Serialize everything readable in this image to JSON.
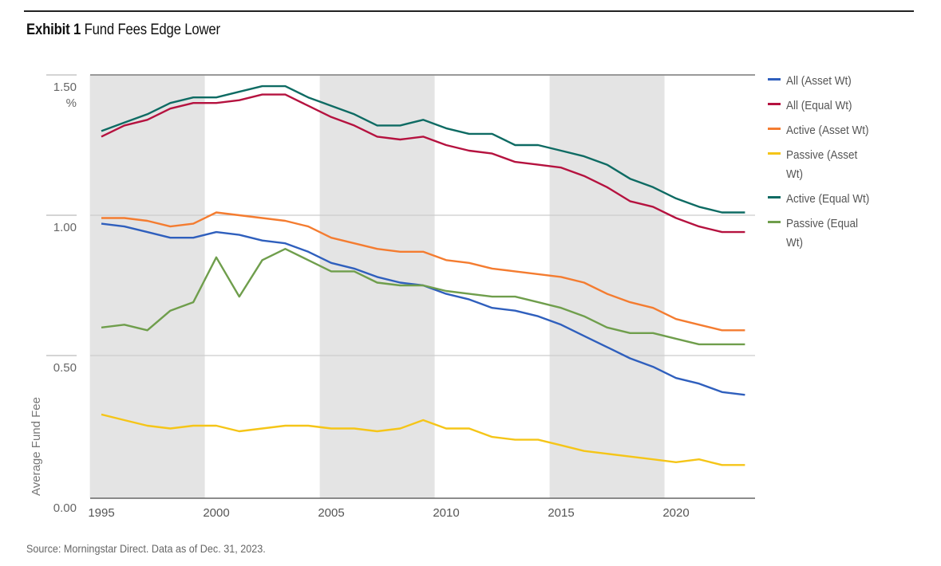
{
  "header": {
    "exhibit": "Exhibit 1",
    "title": "Fund Fees Edge Lower"
  },
  "source": "Source: Morningstar Direct. Data as of Dec. 31, 2023.",
  "chart_data": {
    "type": "line",
    "title": "Fund Fees Edge Lower",
    "ylabel": "Average Fund Fee",
    "yunit": "%",
    "xlabel": "",
    "ylim": [
      0,
      1.5
    ],
    "xlim": [
      1995,
      2023
    ],
    "yticks": [
      "0.00",
      "0.50",
      "1.00",
      "1.50"
    ],
    "xticks": [
      "1995",
      "2000",
      "2005",
      "2010",
      "2015",
      "2020"
    ],
    "grid": "horizontal",
    "legend_position": "right",
    "shaded_bands": [
      [
        1994.5,
        1999.5
      ],
      [
        2004.5,
        2009.5
      ],
      [
        2014.5,
        2019.5
      ]
    ],
    "x": [
      1995,
      1996,
      1997,
      1998,
      1999,
      2000,
      2001,
      2002,
      2003,
      2004,
      2005,
      2006,
      2007,
      2008,
      2009,
      2010,
      2011,
      2012,
      2013,
      2014,
      2015,
      2016,
      2017,
      2018,
      2019,
      2020,
      2021,
      2022,
      2023
    ],
    "series": [
      {
        "name": "All (Asset Wt)",
        "color": "#2f5fbd",
        "values": [
          0.97,
          0.96,
          0.94,
          0.92,
          0.92,
          0.94,
          0.93,
          0.91,
          0.9,
          0.87,
          0.83,
          0.81,
          0.78,
          0.76,
          0.75,
          0.72,
          0.7,
          0.67,
          0.66,
          0.64,
          0.61,
          0.57,
          0.53,
          0.49,
          0.46,
          0.42,
          0.4,
          0.37,
          0.36
        ]
      },
      {
        "name": "All (Equal Wt)",
        "color": "#b5123f",
        "values": [
          1.28,
          1.32,
          1.34,
          1.38,
          1.4,
          1.4,
          1.41,
          1.43,
          1.43,
          1.39,
          1.35,
          1.32,
          1.28,
          1.27,
          1.28,
          1.25,
          1.23,
          1.22,
          1.19,
          1.18,
          1.17,
          1.14,
          1.1,
          1.05,
          1.03,
          0.99,
          0.96,
          0.94,
          0.94
        ]
      },
      {
        "name": "Active (Asset Wt)",
        "color": "#f47c30",
        "values": [
          0.99,
          0.99,
          0.98,
          0.96,
          0.97,
          1.01,
          1.0,
          0.99,
          0.98,
          0.96,
          0.92,
          0.9,
          0.88,
          0.87,
          0.87,
          0.84,
          0.83,
          0.81,
          0.8,
          0.79,
          0.78,
          0.76,
          0.72,
          0.69,
          0.67,
          0.63,
          0.61,
          0.59,
          0.59
        ]
      },
      {
        "name": "Passive (Asset Wt)",
        "color": "#f5c518",
        "values": [
          0.29,
          0.27,
          0.25,
          0.24,
          0.25,
          0.25,
          0.23,
          0.24,
          0.25,
          0.25,
          0.24,
          0.24,
          0.23,
          0.24,
          0.27,
          0.24,
          0.24,
          0.21,
          0.2,
          0.2,
          0.18,
          0.16,
          0.15,
          0.14,
          0.13,
          0.12,
          0.13,
          0.11,
          0.11
        ]
      },
      {
        "name": "Active (Equal Wt)",
        "color": "#0e6b63",
        "values": [
          1.3,
          1.33,
          1.36,
          1.4,
          1.42,
          1.42,
          1.44,
          1.46,
          1.46,
          1.42,
          1.39,
          1.36,
          1.32,
          1.32,
          1.34,
          1.31,
          1.29,
          1.29,
          1.25,
          1.25,
          1.23,
          1.21,
          1.18,
          1.13,
          1.1,
          1.06,
          1.03,
          1.01,
          1.01
        ]
      },
      {
        "name": "Passive (Equal Wt)",
        "color": "#6f9e4c",
        "values": [
          0.6,
          0.61,
          0.59,
          0.66,
          0.69,
          0.85,
          0.71,
          0.84,
          0.88,
          0.84,
          0.8,
          0.8,
          0.76,
          0.75,
          0.75,
          0.73,
          0.72,
          0.71,
          0.71,
          0.69,
          0.67,
          0.64,
          0.6,
          0.58,
          0.58,
          0.56,
          0.54,
          0.54,
          0.54
        ]
      }
    ]
  },
  "legend": {
    "items": [
      "All (Asset Wt)",
      "All (Equal Wt)",
      "Active (Asset Wt)",
      "Passive (Asset Wt)",
      "Active (Equal Wt)",
      "Passive (Equal Wt)"
    ]
  }
}
